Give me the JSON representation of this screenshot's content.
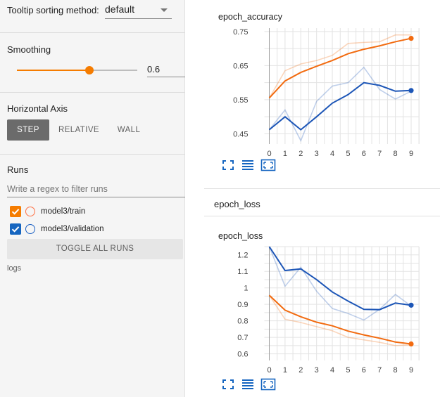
{
  "sidebar": {
    "sort": {
      "label": "Tooltip sorting method:",
      "value": "default"
    },
    "smoothing": {
      "title": "Smoothing",
      "value": "0.6",
      "level": 0.6
    },
    "horizontal_axis": {
      "title": "Horizontal Axis",
      "options": [
        "STEP",
        "RELATIVE",
        "WALL"
      ],
      "selected": "STEP"
    },
    "runs": {
      "title": "Runs",
      "filter_placeholder": "Write a regex to filter runs",
      "items": [
        {
          "label": "model3/train",
          "color": "#ff7043",
          "checked": true
        },
        {
          "label": "model3/validation",
          "color": "#1e63c4",
          "checked": true
        }
      ],
      "toggle_label": "TOGGLE ALL RUNS",
      "logdir": "logs"
    }
  },
  "colors": {
    "accent": "#f57c00",
    "train": "#f26b10",
    "validation": "#1d56b7",
    "checkbox_train": "#f57c00",
    "checkbox_validation": "#1565c0"
  },
  "main": {
    "group_title": "epoch_loss",
    "icons": [
      "fullscreen-icon",
      "toggle-y-log-icon",
      "fit-domain-icon"
    ]
  },
  "chart_data": [
    {
      "type": "line",
      "title": "epoch_accuracy",
      "x": [
        0,
        1,
        2,
        3,
        4,
        5,
        6,
        7,
        8,
        9
      ],
      "xlim": [
        0,
        9
      ],
      "ylim": [
        0.42,
        0.76
      ],
      "yticks": [
        "0.45",
        "0.55",
        "0.65",
        "0.75"
      ],
      "ytick_values": [
        0.45,
        0.55,
        0.65,
        0.75
      ],
      "grid": true,
      "series": [
        {
          "name": "model3/train",
          "smoothed": true,
          "values": [
            0.555,
            0.605,
            0.63,
            0.648,
            0.665,
            0.685,
            0.698,
            0.708,
            0.72,
            0.73
          ]
        },
        {
          "name": "model3/train",
          "smoothed": false,
          "values": [
            0.555,
            0.635,
            0.655,
            0.665,
            0.68,
            0.715,
            0.718,
            0.72,
            0.74,
            0.74
          ]
        },
        {
          "name": "model3/validation",
          "smoothed": true,
          "values": [
            0.462,
            0.5,
            0.462,
            0.5,
            0.54,
            0.565,
            0.6,
            0.592,
            0.575,
            0.577
          ]
        },
        {
          "name": "model3/validation",
          "smoothed": false,
          "values": [
            0.462,
            0.52,
            0.43,
            0.545,
            0.59,
            0.6,
            0.645,
            0.58,
            0.552,
            0.575
          ]
        }
      ]
    },
    {
      "type": "line",
      "title": "epoch_loss",
      "x": [
        0,
        1,
        2,
        3,
        4,
        5,
        6,
        7,
        8,
        9
      ],
      "xlim": [
        0,
        9
      ],
      "ylim": [
        0.56,
        1.25
      ],
      "yticks": [
        "0.6",
        "0.7",
        "0.8",
        "0.9",
        "1",
        "1.1",
        "1.2"
      ],
      "ytick_values": [
        0.6,
        0.7,
        0.8,
        0.9,
        1,
        1.1,
        1.2
      ],
      "grid": true,
      "series": [
        {
          "name": "model3/train",
          "smoothed": true,
          "values": [
            0.955,
            0.865,
            0.825,
            0.792,
            0.77,
            0.738,
            0.715,
            0.695,
            0.672,
            0.66
          ]
        },
        {
          "name": "model3/train",
          "smoothed": false,
          "values": [
            0.955,
            0.81,
            0.79,
            0.765,
            0.74,
            0.7,
            0.685,
            0.67,
            0.65,
            0.655
          ]
        },
        {
          "name": "model3/validation",
          "smoothed": true,
          "values": [
            1.25,
            1.105,
            1.115,
            1.05,
            0.975,
            0.92,
            0.87,
            0.868,
            0.908,
            0.895
          ]
        },
        {
          "name": "model3/validation",
          "smoothed": false,
          "values": [
            1.25,
            1.01,
            1.125,
            0.98,
            0.875,
            0.845,
            0.805,
            0.87,
            0.96,
            0.89
          ]
        }
      ]
    }
  ]
}
